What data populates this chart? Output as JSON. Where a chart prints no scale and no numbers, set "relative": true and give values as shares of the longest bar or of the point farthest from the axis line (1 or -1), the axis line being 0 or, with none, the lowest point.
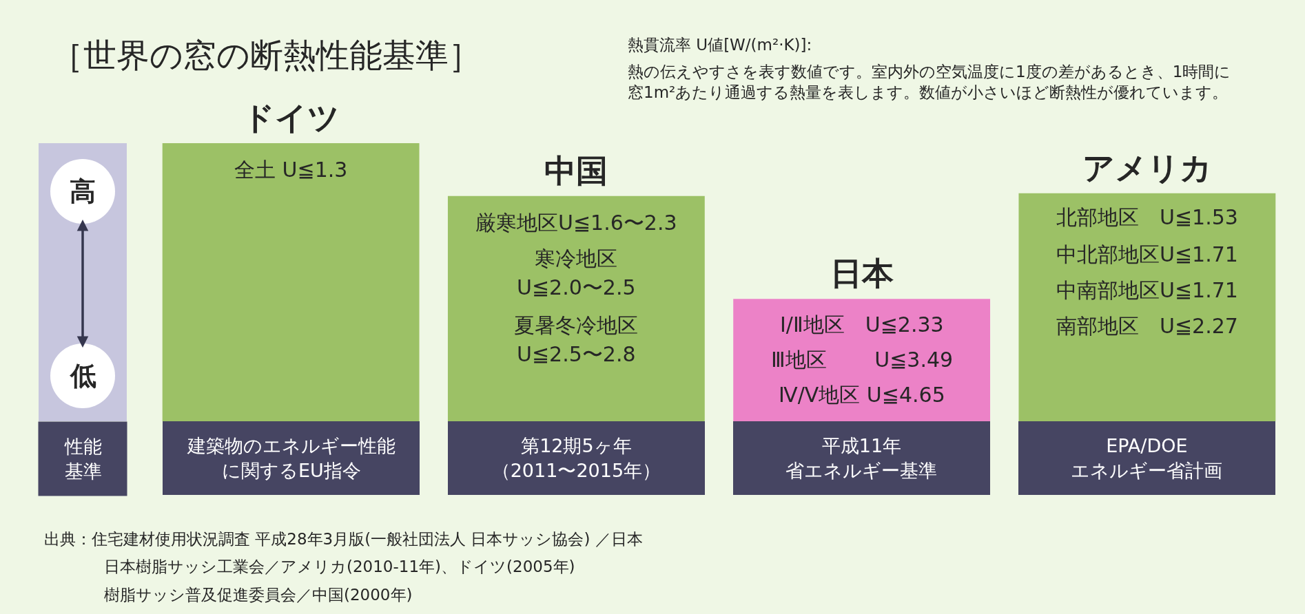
{
  "chart_data": {
    "type": "bar",
    "title": "［世界の窓の断熱性能基準］",
    "ylabel": "性能基準",
    "categories": [
      "建築物のエネルギー性能に関するEU指令",
      "第12期5ヶ年（2011〜2015年）",
      "平成11年省エネルギー基準",
      "EPA/DOE\nエネルギー省計画"
    ],
    "values": [
      1,
      0.81,
      0.44,
      0.82
    ],
    "relative": true,
    "colors": [
      "#9cc166",
      "#9cc166",
      "#ec82c7",
      "#9cc166"
    ],
    "annotations": [
      "熱貫流率 U値[W/(m²·K)]:",
      "熱の伝えやすさを表す数値です。室内外の空気温度に1度の差があるとき、1時間に窓1m²あたり通過する熱量を表します。数値が小さいほど断熱性が優れています。",
      "高",
      "低",
      {
        "text": "ドイツ",
        "x": "建築物のエネルギー性能に関するEU指令",
        "y": 1
      },
      "全土 U≦1.3",
      {
        "text": "中国",
        "x": "第12期5ヶ年（2011〜2015年）",
        "y": 0.81
      },
      "厳寒地区U≦1.6〜2.3",
      "寒冷地区",
      "U≦2.0〜2.5",
      "夏暑冬冷地区",
      "U≦2.5〜2.8",
      {
        "text": "日本",
        "x": "平成11年省エネルギー基準",
        "y": 0.44
      },
      "Ⅰ/Ⅱ地区　U≦2.33",
      "Ⅲ地区　　 U≦3.49",
      "Ⅳ/Ⅴ地区 U≦4.65",
      {
        "text": "アメリカ",
        "x": "EPA/DOE\nエネルギー省計画",
        "y": 0.82
      },
      "北部地区　U≦1.53",
      "中北部地区U≦1.71",
      "中南部地区U≦1.71",
      "南部地区　U≦2.27",
      "出典：住宅建材使用状況調査 平成28年3月版(一般社団法人 日本サッシ協会) ／日本",
      "日本樹脂サッシ工業会／アメリカ(2010-11年)、ドイツ(2005年)",
      "樹脂サッシ普及促進委員会／中国(2000年)"
    ]
  }
}
